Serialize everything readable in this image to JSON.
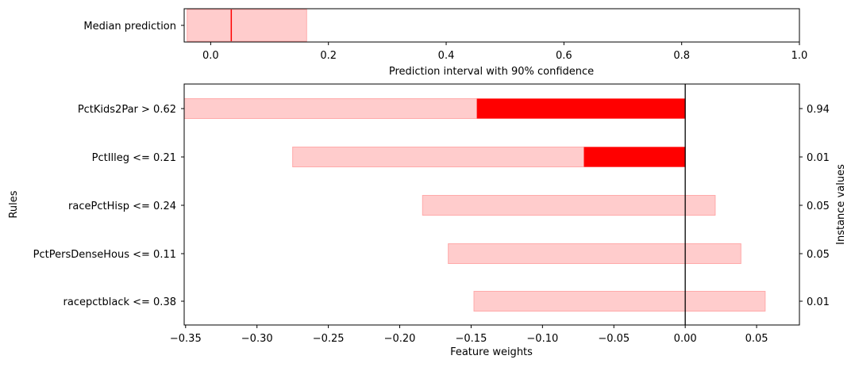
{
  "chart_data": [
    {
      "type": "bar",
      "orientation": "horizontal",
      "category": "Median prediction",
      "median": 0.035,
      "interval": [
        -0.04,
        0.163
      ],
      "xlabel": "Prediction interval with 90% confidence",
      "xlim": [
        -0.045,
        1.0
      ],
      "xticks": [
        "0.0",
        "0.2",
        "0.4",
        "0.6",
        "0.8",
        "1.0"
      ],
      "xtick_values": [
        0.0,
        0.2,
        0.4,
        0.6,
        0.8,
        1.0
      ],
      "colors": {
        "interval": "#ffcccc",
        "median": "#ff0000"
      }
    },
    {
      "type": "bar",
      "orientation": "horizontal",
      "ylabel": "Rules",
      "xlabel": "Feature weights",
      "right_label": "Instance values",
      "xlim": [
        -0.351,
        0.08
      ],
      "xticks": [
        "−0.35",
        "−0.30",
        "−0.25",
        "−0.20",
        "−0.15",
        "−0.10",
        "−0.05",
        "0.00",
        "0.05"
      ],
      "xtick_values": [
        -0.35,
        -0.3,
        -0.25,
        -0.2,
        -0.15,
        -0.1,
        -0.05,
        0.0,
        0.05
      ],
      "rules": [
        {
          "label": "PctKids2Par > 0.62",
          "weight": -0.146,
          "interval": [
            -0.351,
            0.0
          ],
          "instance_value": "0.94"
        },
        {
          "label": "PctIlleg <= 0.21",
          "weight": -0.071,
          "interval": [
            -0.275,
            0.0
          ],
          "instance_value": "0.01"
        },
        {
          "label": "racePctHisp <= 0.24",
          "weight": 0.0,
          "interval": [
            -0.184,
            0.021
          ],
          "instance_value": "0.05"
        },
        {
          "label": "PctPersDenseHous <= 0.11",
          "weight": 0.0,
          "interval": [
            -0.166,
            0.039
          ],
          "instance_value": "0.05"
        },
        {
          "label": "racepctblack <= 0.38",
          "weight": 0.0,
          "interval": [
            -0.148,
            0.056
          ],
          "instance_value": "0.01"
        }
      ],
      "colors": {
        "interval": "#ffcccc",
        "interval_edge": "#ffaaaa",
        "weight": "#ff0000",
        "zero_line": "#000000"
      }
    }
  ]
}
